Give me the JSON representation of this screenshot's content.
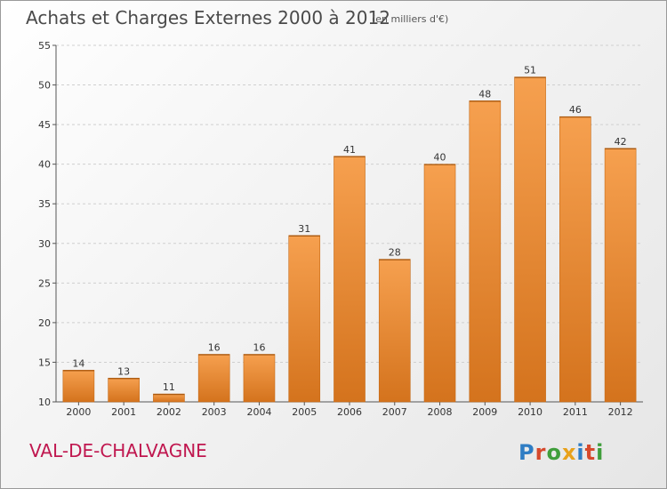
{
  "header": {
    "title": "Achats et Charges Externes 2000 à 2012",
    "unit": "(en milliers d'€)"
  },
  "footer": {
    "location": "VAL-DE-CHALVAGNE",
    "brand": "Proxiti"
  },
  "colors": {
    "bar_top": "#f6a04f",
    "bar_bottom": "#d4731d",
    "brand_letters": [
      "#2f7dc4",
      "#d6492c",
      "#3f9e3b",
      "#e8a11a",
      "#2f7dc4",
      "#d6492c",
      "#3f9e3b"
    ]
  },
  "chart_data": {
    "type": "bar",
    "title": "Achats et Charges Externes 2000 à 2012",
    "xlabel": "",
    "ylabel": "",
    "categories": [
      "2000",
      "2001",
      "2002",
      "2003",
      "2004",
      "2005",
      "2006",
      "2007",
      "2008",
      "2009",
      "2010",
      "2011",
      "2012"
    ],
    "values": [
      14,
      13,
      11,
      16,
      16,
      31,
      41,
      28,
      40,
      48,
      51,
      46,
      42
    ],
    "ylim": [
      10,
      55
    ],
    "yticks": [
      10,
      15,
      20,
      25,
      30,
      35,
      40,
      45,
      50,
      55
    ],
    "grid": true,
    "legend": "none"
  }
}
